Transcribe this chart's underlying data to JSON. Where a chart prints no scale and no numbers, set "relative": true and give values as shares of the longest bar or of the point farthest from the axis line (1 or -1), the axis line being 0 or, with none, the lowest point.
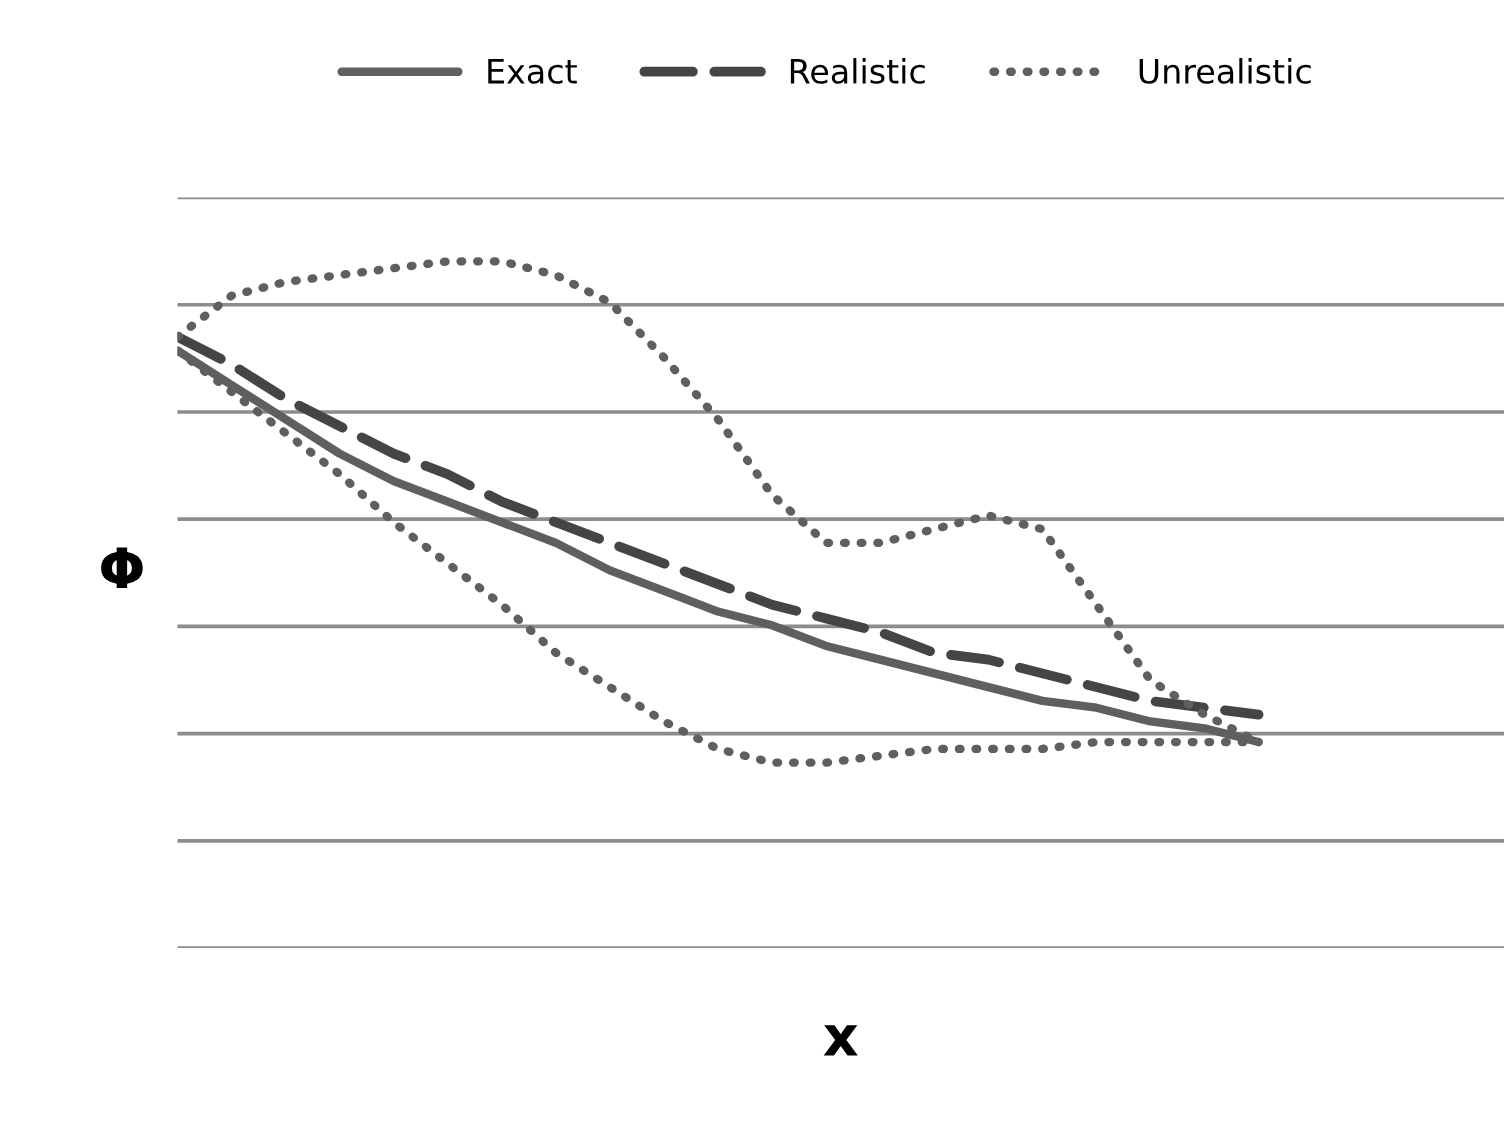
{
  "chart_data": {
    "type": "line",
    "relative": true,
    "xlabel": "x",
    "ylabel": "Φ",
    "grid": "y",
    "legend": "top",
    "marker": "none",
    "categories": [
      null,
      null,
      null,
      null,
      null,
      null,
      null,
      null,
      null,
      null,
      null,
      null,
      null,
      null,
      null,
      null,
      null,
      null,
      null,
      null,
      null
    ],
    "series": [
      {
        "name": "Exact",
        "color": "#5f5f5f",
        "line_style": "solid",
        "values": [
          0.87,
          0.82,
          0.77,
          0.72,
          0.68,
          0.65,
          0.62,
          0.59,
          0.55,
          0.52,
          0.49,
          0.47,
          0.44,
          0.42,
          0.4,
          0.38,
          0.36,
          0.35,
          0.33,
          0.32,
          0.3
        ]
      },
      {
        "name": "Realistic",
        "color": "#454545",
        "line_style": "dashed",
        "values": [
          0.89,
          0.85,
          0.8,
          0.76,
          0.72,
          0.69,
          0.65,
          0.62,
          0.59,
          0.56,
          0.53,
          0.5,
          0.48,
          0.46,
          0.43,
          0.42,
          0.4,
          0.38,
          0.36,
          0.35,
          0.34
        ]
      },
      {
        "name": "Unrealistic",
        "color": "#5f5f5f",
        "line_style": "dotted",
        "values": [
          0.89,
          0.95,
          0.97,
          0.98,
          0.99,
          1.0,
          1.0,
          0.98,
          0.94,
          0.86,
          0.77,
          0.66,
          0.59,
          0.59,
          0.61,
          0.63,
          0.61,
          0.5,
          0.39,
          0.34,
          0.3
        ]
      },
      {
        "color": "#5f5f5f",
        "line_style": "dotted",
        "values": [
          0.87,
          0.81,
          0.75,
          0.69,
          0.62,
          0.56,
          0.5,
          0.43,
          0.38,
          0.33,
          0.29,
          0.27,
          0.27,
          0.28,
          0.29,
          0.29,
          0.29,
          0.3,
          0.3,
          0.3,
          0.3
        ]
      }
    ]
  }
}
